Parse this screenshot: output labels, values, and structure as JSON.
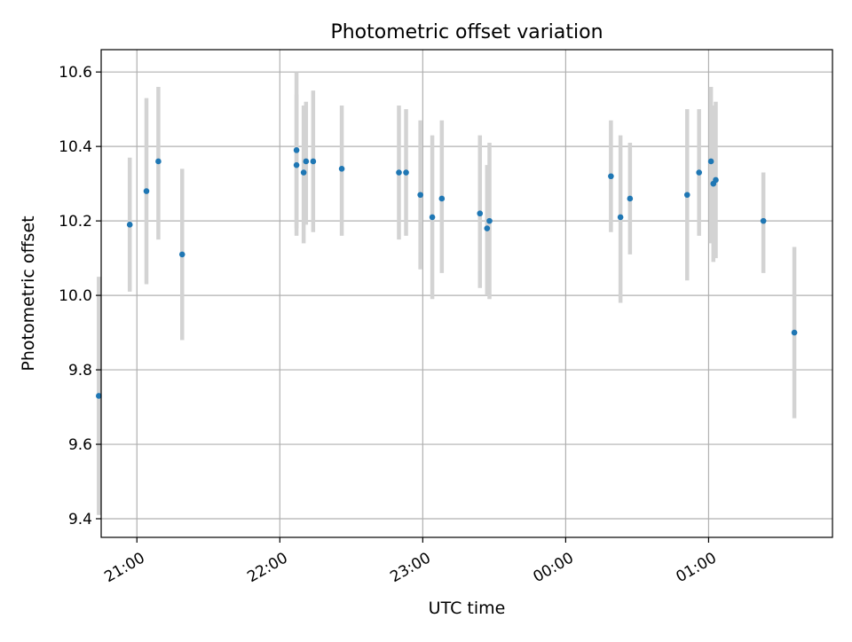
{
  "chart_data": {
    "type": "scatter",
    "title": "Photometric offset variation",
    "xlabel": "UTC time",
    "ylabel": "Photometric offset",
    "x_axis_kind": "time",
    "xlim": [
      "20:45",
      "01:52"
    ],
    "ylim": [
      9.35,
      10.66
    ],
    "x_tick_labels": [
      "21:00",
      "22:00",
      "23:00",
      "00:00",
      "01:00"
    ],
    "y_tick_labels": [
      "9.4",
      "9.6",
      "9.8",
      "10.0",
      "10.2",
      "10.4",
      "10.6"
    ],
    "grid": true,
    "error_bar_color": "#d3d3d3",
    "point_color": "#1f77b4",
    "points": [
      {
        "time": "20:44",
        "y": 9.73,
        "lo": 9.41,
        "hi": 10.05
      },
      {
        "time": "20:57",
        "y": 10.19,
        "lo": 10.01,
        "hi": 10.37
      },
      {
        "time": "21:04",
        "y": 10.28,
        "lo": 10.03,
        "hi": 10.53
      },
      {
        "time": "21:09",
        "y": 10.36,
        "lo": 10.15,
        "hi": 10.56
      },
      {
        "time": "21:19",
        "y": 10.11,
        "lo": 9.88,
        "hi": 10.34
      },
      {
        "time": "22:07",
        "y": 10.35,
        "lo": 10.16,
        "hi": 10.54
      },
      {
        "time": "22:07",
        "y": 10.39,
        "lo": 10.18,
        "hi": 10.6
      },
      {
        "time": "22:10",
        "y": 10.33,
        "lo": 10.14,
        "hi": 10.51
      },
      {
        "time": "22:11",
        "y": 10.36,
        "lo": 10.19,
        "hi": 10.52
      },
      {
        "time": "22:14",
        "y": 10.36,
        "lo": 10.17,
        "hi": 10.55
      },
      {
        "time": "22:26",
        "y": 10.34,
        "lo": 10.16,
        "hi": 10.51
      },
      {
        "time": "22:50",
        "y": 10.33,
        "lo": 10.15,
        "hi": 10.51
      },
      {
        "time": "22:53",
        "y": 10.33,
        "lo": 10.16,
        "hi": 10.5
      },
      {
        "time": "22:59",
        "y": 10.27,
        "lo": 10.07,
        "hi": 10.47
      },
      {
        "time": "23:04",
        "y": 10.21,
        "lo": 9.99,
        "hi": 10.43
      },
      {
        "time": "23:08",
        "y": 10.26,
        "lo": 10.06,
        "hi": 10.47
      },
      {
        "time": "23:24",
        "y": 10.22,
        "lo": 10.02,
        "hi": 10.43
      },
      {
        "time": "23:27",
        "y": 10.18,
        "lo": 10.0,
        "hi": 10.35
      },
      {
        "time": "23:28",
        "y": 10.2,
        "lo": 9.99,
        "hi": 10.41
      },
      {
        "time": "00:19",
        "y": 10.32,
        "lo": 10.17,
        "hi": 10.47
      },
      {
        "time": "00:23",
        "y": 10.21,
        "lo": 9.98,
        "hi": 10.43
      },
      {
        "time": "00:27",
        "y": 10.26,
        "lo": 10.11,
        "hi": 10.41
      },
      {
        "time": "00:51",
        "y": 10.27,
        "lo": 10.04,
        "hi": 10.5
      },
      {
        "time": "00:56",
        "y": 10.33,
        "lo": 10.16,
        "hi": 10.5
      },
      {
        "time": "01:01",
        "y": 10.36,
        "lo": 10.14,
        "hi": 10.56
      },
      {
        "time": "01:02",
        "y": 10.3,
        "lo": 10.09,
        "hi": 10.51
      },
      {
        "time": "01:03",
        "y": 10.31,
        "lo": 10.1,
        "hi": 10.52
      },
      {
        "time": "01:23",
        "y": 10.2,
        "lo": 10.06,
        "hi": 10.33
      },
      {
        "time": "01:36",
        "y": 9.9,
        "lo": 9.67,
        "hi": 10.13
      }
    ]
  }
}
